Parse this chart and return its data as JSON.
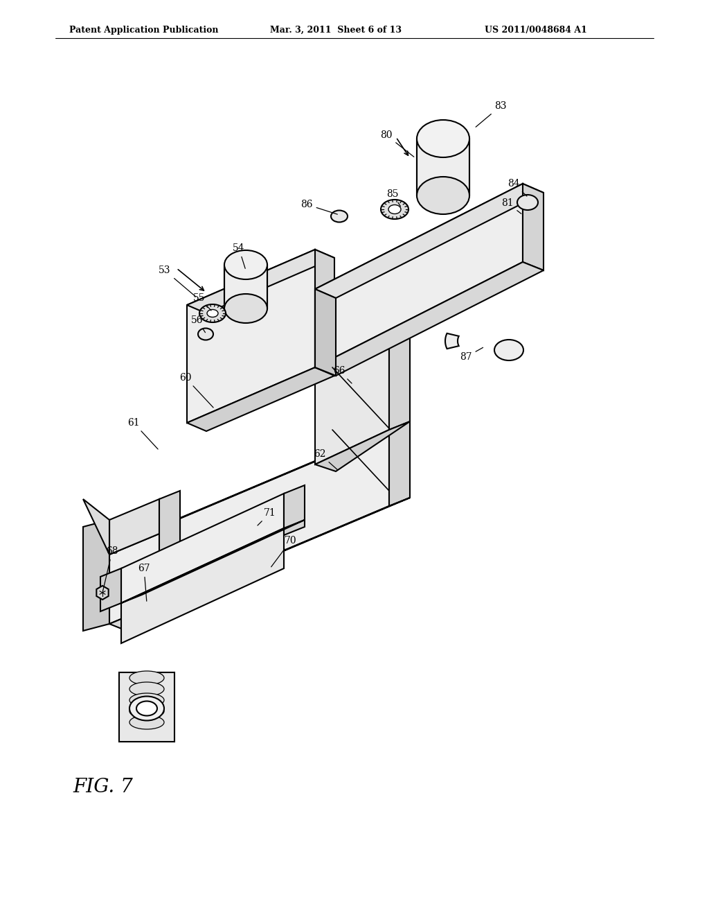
{
  "bg_color": "#ffffff",
  "header_left": "Patent Application Publication",
  "header_mid": "Mar. 3, 2011  Sheet 6 of 13",
  "header_right": "US 2011/0048684 A1",
  "fig_label": "FIG. 7",
  "line_color": "#000000",
  "labels_info": [
    [
      "53",
      238,
      390,
      285,
      430
    ],
    [
      "54",
      345,
      358,
      355,
      390
    ],
    [
      "55",
      288,
      430,
      307,
      450
    ],
    [
      "56",
      285,
      462,
      298,
      482
    ],
    [
      "60",
      268,
      545,
      310,
      590
    ],
    [
      "61",
      193,
      610,
      230,
      650
    ],
    [
      "62",
      462,
      655,
      490,
      680
    ],
    [
      "66",
      490,
      535,
      510,
      555
    ],
    [
      "67",
      208,
      820,
      212,
      870
    ],
    [
      "68",
      162,
      795,
      148,
      855
    ],
    [
      "70",
      420,
      780,
      390,
      820
    ],
    [
      "71",
      390,
      740,
      370,
      760
    ],
    [
      "80",
      558,
      195,
      600,
      228
    ],
    [
      "81",
      733,
      293,
      755,
      310
    ],
    [
      "83",
      723,
      153,
      685,
      185
    ],
    [
      "84",
      742,
      265,
      763,
      285
    ],
    [
      "85",
      567,
      280,
      580,
      300
    ],
    [
      "86",
      443,
      295,
      490,
      310
    ],
    [
      "87",
      673,
      515,
      700,
      500
    ]
  ]
}
